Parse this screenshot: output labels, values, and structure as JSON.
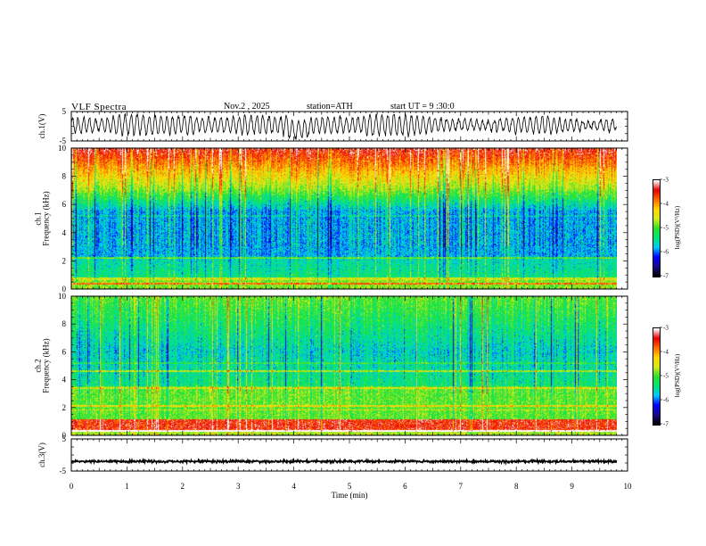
{
  "header": {
    "title": "VLF  Spectra",
    "date": "Nov.2  , 2025",
    "station": "station=ATH",
    "start": "start  UT  =   9  :30:0"
  },
  "colors": {
    "axis": "#000000",
    "colormap": [
      "#000000",
      "#1a0b8c",
      "#0000ff",
      "#00c8ff",
      "#00e678",
      "#2be22b",
      "#d8ec1e",
      "#ffd700",
      "#ff6a00",
      "#e60000",
      "#ffffff"
    ]
  },
  "chart_data": [
    {
      "type": "line",
      "name": "ch1-waveform",
      "ylabel": "ch.1(V)",
      "ylim": [
        -5,
        5
      ],
      "yticks": [
        "5",
        "-5"
      ],
      "xlim": [
        0,
        10
      ],
      "description_of_signal": "noisy oscillation mostly between -3 and 4 V"
    },
    {
      "type": "heatmap",
      "name": "ch1-spectrogram",
      "ylabel": "ch.1\nFrequency  (kHz)",
      "ylim": [
        0,
        10
      ],
      "yticks": [
        "0",
        "2",
        "4",
        "6",
        "8",
        "10"
      ],
      "xlim": [
        0,
        9.8
      ],
      "colorbar": {
        "label": "log(PSD)(V²/Hz)",
        "range": [
          -7,
          -3
        ],
        "ticks": [
          "-3",
          "-4",
          "-5",
          "-6",
          "-7"
        ]
      }
    },
    {
      "type": "heatmap",
      "name": "ch2-spectrogram",
      "ylabel": "ch.2\nFrequency  (kHz)",
      "ylim": [
        0,
        10
      ],
      "yticks": [
        "0",
        "2",
        "4",
        "6",
        "8",
        "10"
      ],
      "xlim": [
        0,
        9.8
      ],
      "colorbar": {
        "label": "log(PSD)(V²/Hz)",
        "range": [
          -7,
          -3
        ],
        "ticks": [
          "-3",
          "-4",
          "-5",
          "-6",
          "-7"
        ]
      }
    },
    {
      "type": "line",
      "name": "ch3-waveform",
      "ylabel": "ch.3(V)",
      "ylim": [
        -5,
        5
      ],
      "yticks": [
        "5",
        "-5"
      ],
      "xlim": [
        0,
        10
      ],
      "level": -2
    }
  ],
  "xaxis": {
    "label": "Time  (min)",
    "ticks": [
      "0",
      "1",
      "2",
      "3",
      "4",
      "5",
      "6",
      "7",
      "8",
      "9",
      "10"
    ],
    "range": [
      0,
      10
    ]
  }
}
